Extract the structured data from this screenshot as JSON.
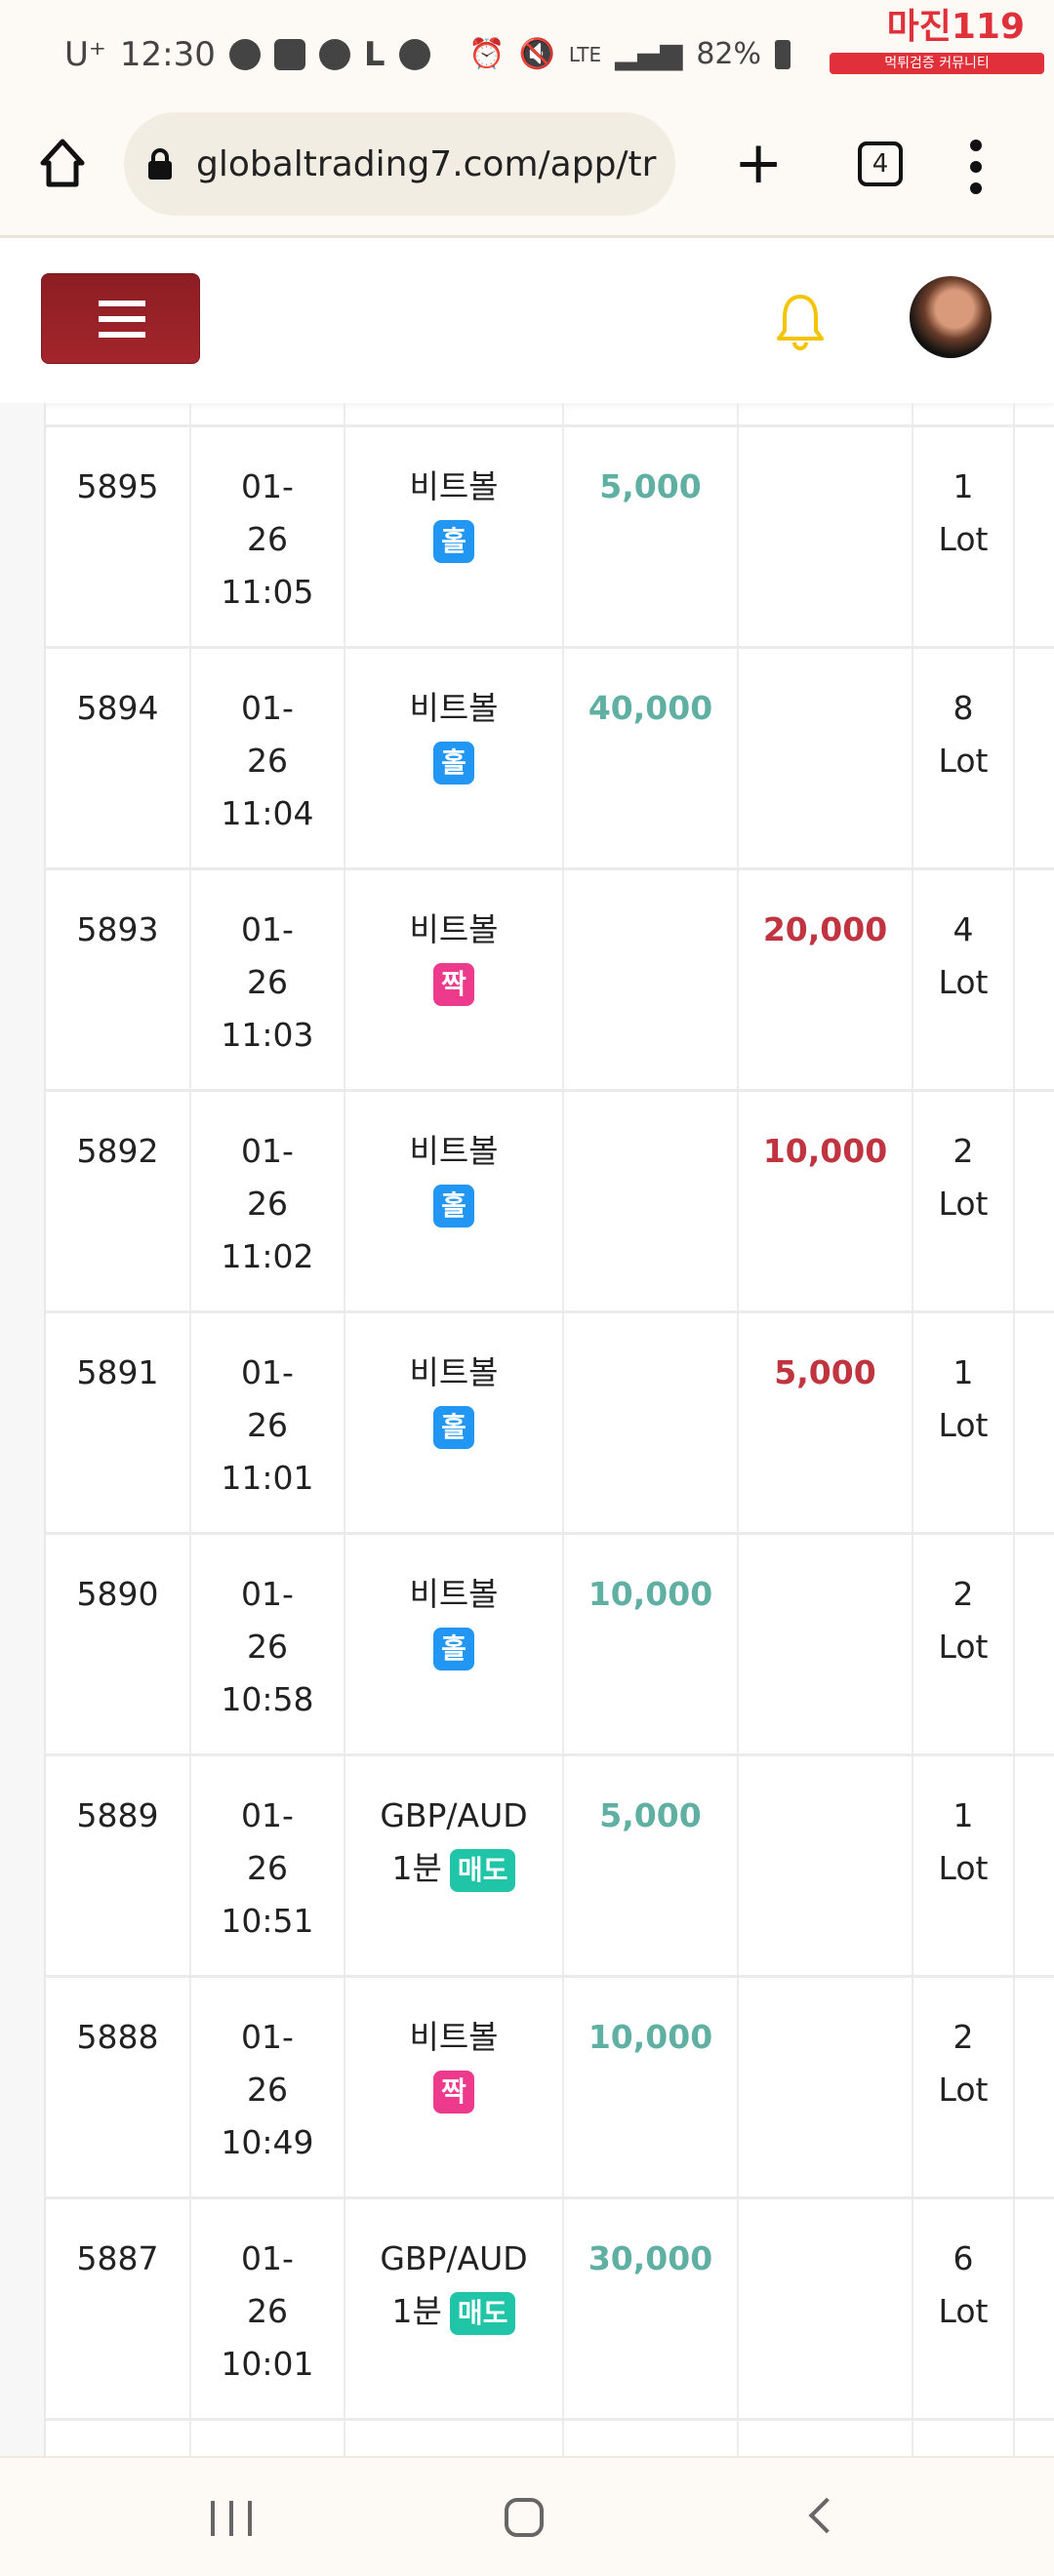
{
  "status_bar": {
    "carrier": "U⁺",
    "time": "12:30",
    "battery": "82%",
    "network": "LTE"
  },
  "watermark": {
    "logo_text": "마진119",
    "sub_text": "먹튀검증 커뮤니티"
  },
  "browser": {
    "url": "globaltrading7.com/app/tr",
    "tab_count": "4"
  },
  "colors": {
    "profit": "#5fb0a2",
    "loss": "#c0343f",
    "badge_odd": "#2196f3",
    "badge_even": "#ee3a8c",
    "badge_sell": "#20c5a8",
    "menu": "#9a2228",
    "bell": "#f5c400"
  },
  "rows": [
    {
      "id": "5895",
      "date": [
        "01-",
        "26",
        "11:05"
      ],
      "item": [
        "비트볼"
      ],
      "badge": "홀",
      "badge_type": "odd",
      "profit": "5,000",
      "loss": "",
      "lot": [
        "1",
        "Lot"
      ]
    },
    {
      "id": "5894",
      "date": [
        "01-",
        "26",
        "11:04"
      ],
      "item": [
        "비트볼"
      ],
      "badge": "홀",
      "badge_type": "odd",
      "profit": "40,000",
      "loss": "",
      "lot": [
        "8",
        "Lot"
      ]
    },
    {
      "id": "5893",
      "date": [
        "01-",
        "26",
        "11:03"
      ],
      "item": [
        "비트볼"
      ],
      "badge": "짝",
      "badge_type": "even",
      "profit": "",
      "loss": "20,000",
      "lot": [
        "4",
        "Lot"
      ]
    },
    {
      "id": "5892",
      "date": [
        "01-",
        "26",
        "11:02"
      ],
      "item": [
        "비트볼"
      ],
      "badge": "홀",
      "badge_type": "odd",
      "profit": "",
      "loss": "10,000",
      "lot": [
        "2",
        "Lot"
      ]
    },
    {
      "id": "5891",
      "date": [
        "01-",
        "26",
        "11:01"
      ],
      "item": [
        "비트볼"
      ],
      "badge": "홀",
      "badge_type": "odd",
      "profit": "",
      "loss": "5,000",
      "lot": [
        "1",
        "Lot"
      ]
    },
    {
      "id": "5890",
      "date": [
        "01-",
        "26",
        "10:58"
      ],
      "item": [
        "비트볼"
      ],
      "badge": "홀",
      "badge_type": "odd",
      "profit": "10,000",
      "loss": "",
      "lot": [
        "2",
        "Lot"
      ]
    },
    {
      "id": "5889",
      "date": [
        "01-",
        "26",
        "10:51"
      ],
      "item": [
        "GBP/AUD",
        "1분"
      ],
      "badge": "매도",
      "badge_type": "sell",
      "profit": "5,000",
      "loss": "",
      "lot": [
        "1",
        "Lot"
      ]
    },
    {
      "id": "5888",
      "date": [
        "01-",
        "26",
        "10:49"
      ],
      "item": [
        "비트볼"
      ],
      "badge": "짝",
      "badge_type": "even",
      "profit": "10,000",
      "loss": "",
      "lot": [
        "2",
        "Lot"
      ]
    },
    {
      "id": "5887",
      "date": [
        "01-",
        "26",
        "10:01"
      ],
      "item": [
        "GBP/AUD",
        "1분"
      ],
      "badge": "매도",
      "badge_type": "sell",
      "profit": "30,000",
      "loss": "",
      "lot": [
        "6",
        "Lot"
      ]
    }
  ]
}
